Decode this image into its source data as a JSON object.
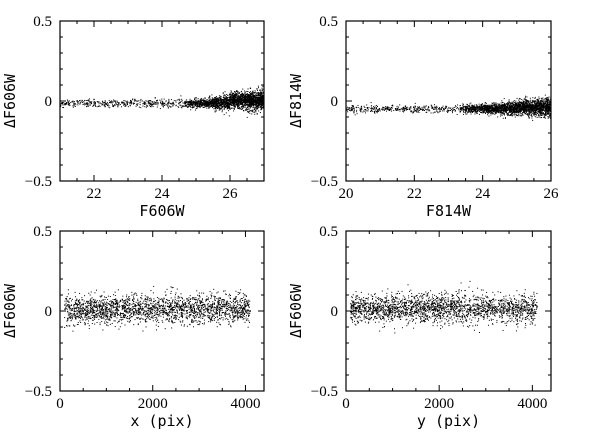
{
  "chart_data": [
    {
      "type": "scatter",
      "xlabel": "F606W",
      "ylabel": "ΔF606W",
      "xlim": [
        21,
        27
      ],
      "ylim": [
        -0.5,
        0.5
      ],
      "xticks": [
        "22",
        "24",
        "26"
      ],
      "yticks": [
        "−0.5",
        "0",
        "0.5"
      ],
      "series": [
        {
          "description_points": "dense cloud, scatter increasing with magnitude",
          "points": [
            [
              21.2,
              -0.01
            ],
            [
              21.5,
              0.0
            ],
            [
              21.8,
              -0.02
            ],
            [
              22.0,
              0.01
            ],
            [
              22.3,
              -0.01
            ],
            [
              22.6,
              0.0
            ],
            [
              22.9,
              -0.02
            ],
            [
              23.2,
              0.01
            ],
            [
              23.5,
              -0.01
            ],
            [
              23.8,
              0.02
            ],
            [
              24.0,
              -0.02
            ],
            [
              24.2,
              0.0
            ],
            [
              24.5,
              0.01
            ],
            [
              24.8,
              -0.03
            ],
            [
              25.0,
              0.02
            ],
            [
              25.2,
              -0.02
            ],
            [
              25.4,
              0.03
            ],
            [
              25.6,
              -0.04
            ],
            [
              25.8,
              0.05
            ],
            [
              26.0,
              -0.05
            ],
            [
              26.2,
              0.06
            ],
            [
              26.4,
              -0.06
            ],
            [
              26.6,
              0.08
            ],
            [
              26.8,
              -0.08
            ]
          ]
        }
      ]
    },
    {
      "type": "scatter",
      "xlabel": "F814W",
      "ylabel": "ΔF814W",
      "xlim": [
        20,
        26
      ],
      "ylim": [
        -0.5,
        0.5
      ],
      "xticks": [
        "20",
        "22",
        "24",
        "26"
      ],
      "yticks": [
        "−0.5",
        "0",
        "0.5"
      ],
      "series": [
        {
          "points": [
            [
              20.3,
              -0.04
            ],
            [
              20.8,
              -0.05
            ],
            [
              21.2,
              -0.04
            ],
            [
              21.7,
              -0.06
            ],
            [
              22.1,
              -0.05
            ],
            [
              22.6,
              -0.07
            ],
            [
              23.0,
              -0.06
            ],
            [
              23.5,
              -0.06
            ],
            [
              24.0,
              -0.05
            ],
            [
              24.3,
              -0.04
            ],
            [
              24.6,
              -0.03
            ],
            [
              24.9,
              -0.05
            ],
            [
              25.1,
              -0.02
            ],
            [
              25.3,
              -0.06
            ],
            [
              25.5,
              0.0
            ],
            [
              25.7,
              -0.08
            ],
            [
              25.9,
              0.02
            ]
          ]
        }
      ]
    },
    {
      "type": "scatter",
      "xlabel": "x (pix)",
      "ylabel": "ΔF606W",
      "xlim": [
        0,
        4400
      ],
      "ylim": [
        -0.5,
        0.5
      ],
      "xticks": [
        "0",
        "2000",
        "4000"
      ],
      "yticks": [
        "−0.5",
        "0",
        "0.5"
      ],
      "series": [
        {
          "points": [
            [
              200,
              0.02
            ],
            [
              500,
              0.0
            ],
            [
              800,
              0.03
            ],
            [
              1100,
              -0.01
            ],
            [
              1400,
              0.02
            ],
            [
              1700,
              0.0
            ],
            [
              2000,
              0.01
            ],
            [
              2300,
              -0.01
            ],
            [
              2600,
              0.02
            ],
            [
              2900,
              0.0
            ],
            [
              3200,
              0.01
            ],
            [
              3500,
              -0.01
            ],
            [
              3800,
              0.02
            ],
            [
              4100,
              0.0
            ]
          ]
        }
      ]
    },
    {
      "type": "scatter",
      "xlabel": "y (pix)",
      "ylabel": "ΔF606W",
      "xlim": [
        0,
        4400
      ],
      "ylim": [
        -0.5,
        0.5
      ],
      "xticks": [
        "0",
        "2000",
        "4000"
      ],
      "yticks": [
        "−0.5",
        "0",
        "0.5"
      ],
      "series": [
        {
          "points": [
            [
              200,
              0.0
            ],
            [
              500,
              0.01
            ],
            [
              800,
              0.0
            ],
            [
              1100,
              0.02
            ],
            [
              1400,
              0.01
            ],
            [
              1700,
              0.0
            ],
            [
              2000,
              0.02
            ],
            [
              2300,
              0.01
            ],
            [
              2600,
              0.0
            ],
            [
              2900,
              0.03
            ],
            [
              3200,
              0.01
            ],
            [
              3500,
              0.02
            ],
            [
              3800,
              0.0
            ],
            [
              4100,
              0.03
            ]
          ]
        }
      ]
    }
  ]
}
